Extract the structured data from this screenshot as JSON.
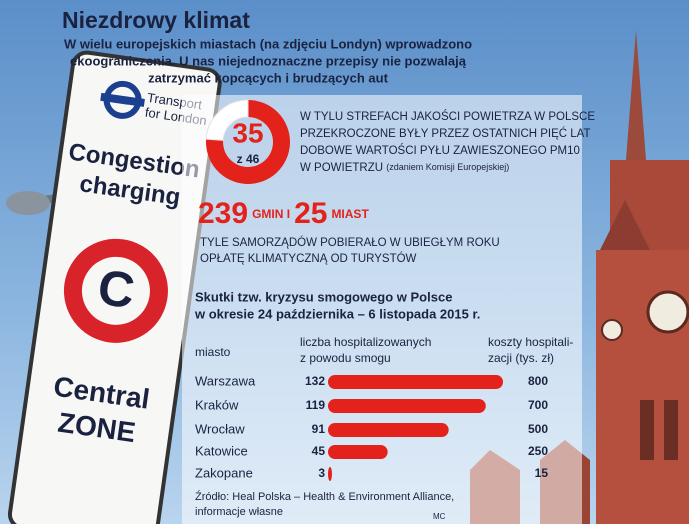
{
  "header": {
    "title": "Niezdrowy klimat",
    "subtitle_lines": [
      "W wielu europejskich miastach (na zdjęciu Londyn) wprowadzono",
      "ekoograniczenia. U nas niejednoznaczne przepisy nie pozwalają",
      "zatrzymać kopcących i brudzących aut"
    ]
  },
  "sign": {
    "operator_lines": [
      "Transport",
      "for London"
    ],
    "scheme_lines": [
      "Congestion",
      "charging"
    ],
    "zone_lines": [
      "Central",
      "ZONE"
    ]
  },
  "donut": {
    "value": 35,
    "total": 46,
    "total_label": "z 46",
    "color": "#e3221b",
    "text_lines": [
      "W TYLU STREFACH JAKOŚCI POWIETRZA W POLSCE",
      "PRZEKROCZONE BYŁY PRZEZ OSTATNICH PIĘĆ LAT",
      "DOBOWE WARTOŚCI PYŁU ZAWIESZONEGO PM10",
      "W POWIETRZU"
    ],
    "note": "(zdaniem Komisji Europejskiej)"
  },
  "stats": {
    "communes": 239,
    "communes_label": "GMIN I",
    "cities": 25,
    "cities_label": "MIAST",
    "text_lines": [
      "TYLE SAMORZĄDÓW POBIERAŁO W UBIEGŁYM ROKU",
      "OPŁATĘ KLIMATYCZNĄ OD TURYSTÓW"
    ]
  },
  "chart_data": {
    "type": "bar",
    "orientation": "horizontal",
    "title_lines": [
      "Skutki tzw. kryzysu smogowego w Polsce",
      "w okresie 24 października – 6 listopada 2015 r."
    ],
    "category_header": "miasto",
    "values_header_lines": [
      "liczba hospitalizowanych",
      "z powodu smogu"
    ],
    "cost_header_lines": [
      "koszty hospitali-",
      "zacji (tys. zł)"
    ],
    "categories": [
      "Warszawa",
      "Kraków",
      "Wrocław",
      "Katowice",
      "Zakopane"
    ],
    "values": [
      132,
      119,
      91,
      45,
      3
    ],
    "cost_values": [
      800,
      700,
      500,
      250,
      15
    ],
    "color": "#e3221b",
    "xlim": [
      0,
      132
    ]
  },
  "source_lines": [
    "Źródło: Heal Polska – Health & Environment Alliance,",
    "informacje własne"
  ],
  "credit": "MC"
}
